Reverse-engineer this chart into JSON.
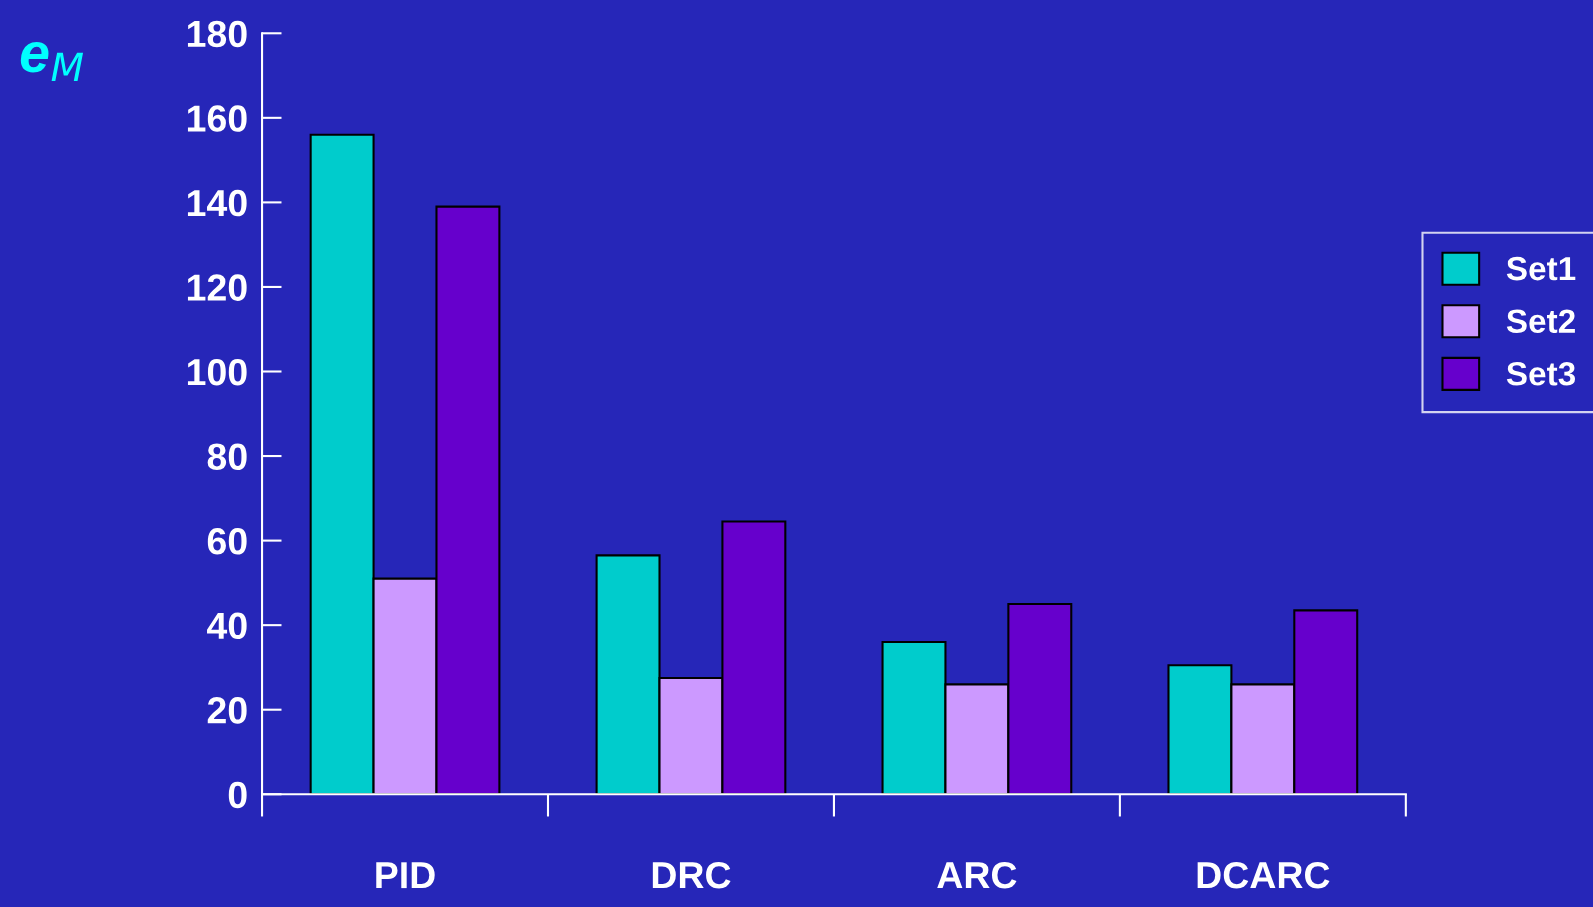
{
  "chart_data": {
    "type": "bar",
    "ylabel": "e$_{M}$",
    "categories": [
      "PID",
      "DRC",
      "ARC",
      "DCARC"
    ],
    "series": [
      {
        "name": "Set1",
        "color": "#00cccc",
        "values": [
          156,
          56.5,
          36,
          30.5
        ]
      },
      {
        "name": "Set2",
        "color": "#cc99ff",
        "values": [
          51,
          27.5,
          26,
          26
        ]
      },
      {
        "name": "Set3",
        "color": "#6600cc",
        "values": [
          139,
          64.5,
          45,
          43.5
        ]
      }
    ],
    "ylim": [
      0,
      180
    ],
    "yticks": [
      0,
      20,
      40,
      60,
      80,
      100,
      120,
      140,
      160,
      180
    ],
    "grid": false,
    "legend": "right"
  }
}
